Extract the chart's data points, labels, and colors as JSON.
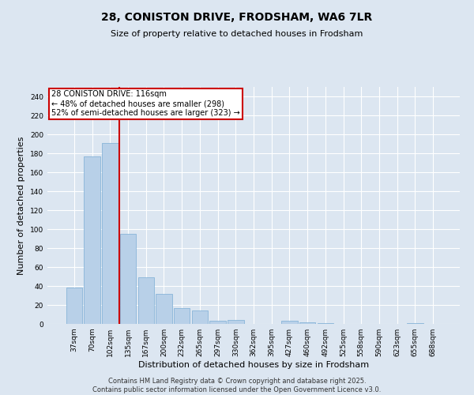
{
  "title_line1": "28, CONISTON DRIVE, FRODSHAM, WA6 7LR",
  "title_line2": "Size of property relative to detached houses in Frodsham",
  "xlabel": "Distribution of detached houses by size in Frodsham",
  "ylabel": "Number of detached properties",
  "footnote_line1": "Contains HM Land Registry data © Crown copyright and database right 2025.",
  "footnote_line2": "Contains public sector information licensed under the Open Government Licence v3.0.",
  "categories": [
    "37sqm",
    "70sqm",
    "102sqm",
    "135sqm",
    "167sqm",
    "200sqm",
    "232sqm",
    "265sqm",
    "297sqm",
    "330sqm",
    "362sqm",
    "395sqm",
    "427sqm",
    "460sqm",
    "492sqm",
    "525sqm",
    "558sqm",
    "590sqm",
    "623sqm",
    "655sqm",
    "688sqm"
  ],
  "values": [
    38,
    177,
    191,
    95,
    49,
    32,
    17,
    14,
    3,
    4,
    0,
    0,
    3,
    2,
    1,
    0,
    0,
    0,
    0,
    1,
    0
  ],
  "bar_color": "#b8d0e8",
  "bar_edgecolor": "#7aadd4",
  "vline_x": 2.5,
  "vline_color": "#cc0000",
  "annotation_text_line1": "28 CONISTON DRIVE: 116sqm",
  "annotation_text_line2": "← 48% of detached houses are smaller (298)",
  "annotation_text_line3": "52% of semi-detached houses are larger (323) →",
  "annotation_box_edgecolor": "#cc0000",
  "annotation_box_facecolor": "#ffffff",
  "bg_color": "#dce6f1",
  "plot_bg_color": "#dce6f1",
  "grid_color": "#ffffff",
  "ylim": [
    0,
    250
  ],
  "yticks": [
    0,
    20,
    40,
    60,
    80,
    100,
    120,
    140,
    160,
    180,
    200,
    220,
    240
  ],
  "title_fontsize": 10,
  "subtitle_fontsize": 8,
  "ylabel_fontsize": 8,
  "xlabel_fontsize": 8,
  "tick_fontsize": 6.5,
  "footnote_fontsize": 6,
  "annotation_fontsize": 7
}
